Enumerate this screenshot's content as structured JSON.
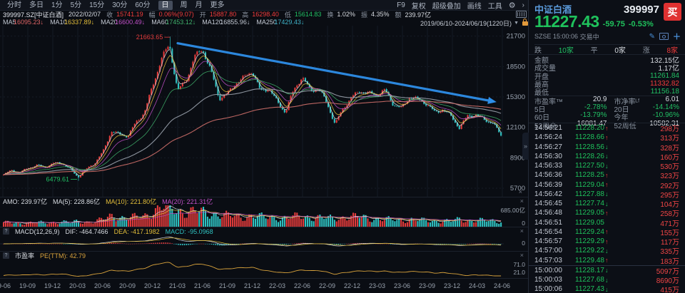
{
  "ui": {
    "gear": "⚙",
    "chevron": "›",
    "caret_down": "▼",
    "close": "×",
    "pencil": "✎",
    "plus": "＋",
    "up_arrow": "↑",
    "down_arrow": "↓",
    "expander": "»"
  },
  "colors": {
    "up": "#e13b3b",
    "down": "#2fc1c1",
    "green": "#21c064",
    "red": "#f23c3c",
    "yellow": "#e2bd3a",
    "magenta": "#c050c8",
    "accent_blue": "#2e8ee8",
    "pe_line": "#d9a33c",
    "name_blue": "#5b9bdc",
    "ma": [
      "#d8d8d8",
      "#e2bd3a",
      "#c050c8",
      "#3faf6a",
      "#9aa2ad",
      "#cf6f6a"
    ]
  },
  "toolbar": {
    "tabs": [
      "分时",
      "多日",
      "1分",
      "5分",
      "15分",
      "30分",
      "60分",
      "日",
      "周",
      "月",
      "更多"
    ],
    "active_tab": "日",
    "right_items": [
      "F9",
      "复权",
      "超级叠加",
      "画线",
      "工具"
    ]
  },
  "info_bar": {
    "symbol": "399997.SZ[中证白酒]",
    "date": "2022/02/07",
    "fields": [
      {
        "label": "收",
        "value": "15741.19",
        "color": "red"
      },
      {
        "label": "幅",
        "value": "0.06%(9.07)",
        "color": "red"
      },
      {
        "label": "开",
        "value": "15887.80",
        "color": "red"
      },
      {
        "label": "高",
        "value": "16298.40",
        "color": "red"
      },
      {
        "label": "低",
        "value": "15614.83",
        "color": "green"
      },
      {
        "label": "换",
        "value": "1.02%",
        "color": "white"
      },
      {
        "label": "振",
        "value": "4.35%",
        "color": "white"
      },
      {
        "label": "额",
        "value": "239.97亿",
        "color": "white"
      }
    ]
  },
  "ma_bar": {
    "items": [
      {
        "label": "MA5",
        "value": "16095.23↓",
        "color": "#e06565"
      },
      {
        "label": "MA10",
        "value": "16337.89↓",
        "color": "#e2bd3a"
      },
      {
        "label": "MA20",
        "value": "16600.49↓",
        "color": "#c050c8"
      },
      {
        "label": "MA60",
        "value": "17453.12↓",
        "color": "#3faf6a"
      },
      {
        "label": "MA120",
        "value": "16855.96↓",
        "color": "#c2c8d2"
      },
      {
        "label": "MA250",
        "value": "17429.43↓",
        "color": "#3fb3c9"
      }
    ],
    "range": "2019/06/10-2024/06/19(1220日)"
  },
  "panes": {
    "volume": {
      "amo": "AMO: 239.97亿",
      "ma5": "MA(5): 228.86亿",
      "ma10": "MA(10): 221.80亿",
      "ma20": "MA(20): 221.31亿",
      "axis_top": "685.00亿",
      "axis_bottom": "0"
    },
    "macd": {
      "help": "?",
      "title": "MACD(12,26,9)",
      "dif": "DIF: -464.7466",
      "dea": "DEA: -417.1982",
      "macd": "MACD: -95.0968",
      "axis_zero": "0"
    },
    "pe": {
      "help": "?",
      "title": "市盈率",
      "value": "PE(TTM): 42.79",
      "axis_top": "71.0",
      "axis_bottom": "21.0"
    }
  },
  "chart_data": {
    "type": "candlestick",
    "title": "中证白酒 399997 日K 2019/06/10-2024/06/19",
    "y_ticks": [
      21700,
      18500,
      15300,
      12100,
      8900,
      5700
    ],
    "x_tick_labels": [
      "19-06",
      "19-09",
      "19-12",
      "20-03",
      "20-06",
      "20-09",
      "20-12",
      "21-03",
      "21-06",
      "21-09",
      "21-12",
      "22-03",
      "22-06",
      "22-09",
      "22-12",
      "23-03",
      "23-06",
      "23-09",
      "23-12",
      "24-03",
      "24-06"
    ],
    "close_monthly": [
      7050,
      7600,
      7400,
      7900,
      8050,
      7850,
      8300,
      8450,
      7750,
      6850,
      7650,
      8350,
      9600,
      11800,
      11300,
      11100,
      12600,
      13800,
      16600,
      19200,
      20600,
      15900,
      17100,
      19600,
      20300,
      17900,
      15100,
      15700,
      16900,
      17300,
      17900,
      15800,
      16300,
      14900,
      13700,
      15900,
      17300,
      16100,
      16300,
      14700,
      12300,
      14100,
      15300,
      16100,
      15700,
      15400,
      15900,
      14600,
      14200,
      15400,
      14900,
      14500,
      13700,
      14100,
      13300,
      11950,
      13250,
      13400,
      13050,
      12600,
      11227.43
    ],
    "volume_monthly_yi": [
      150,
      160,
      140,
      150,
      160,
      150,
      170,
      180,
      160,
      200,
      180,
      190,
      260,
      380,
      330,
      300,
      340,
      380,
      520,
      640,
      685,
      560,
      480,
      520,
      500,
      450,
      420,
      380,
      360,
      350,
      380,
      340,
      330,
      320,
      300,
      340,
      380,
      330,
      320,
      300,
      310,
      330,
      340,
      360,
      300,
      280,
      260,
      250,
      240,
      260,
      240,
      220,
      210,
      220,
      200,
      260,
      230,
      240,
      220,
      210,
      200
    ],
    "pe_monthly": [
      29,
      31,
      30,
      32,
      32,
      31,
      33,
      34,
      31,
      26,
      29,
      33,
      38,
      46,
      44,
      43,
      48,
      52,
      62,
      68,
      71,
      55,
      58,
      64,
      66,
      58,
      49,
      50,
      53,
      54,
      55,
      48,
      43,
      40,
      37,
      42,
      47,
      44,
      45,
      40,
      33,
      38,
      41,
      44,
      43,
      42,
      43,
      40,
      39,
      42,
      41,
      40,
      37,
      38,
      36,
      32,
      29,
      31,
      30,
      29,
      27
    ],
    "last_close": 11227.43,
    "high_label": {
      "text": "21663.65",
      "month_index": 20,
      "value": 21663.65
    },
    "low_label": {
      "text": "6479.61",
      "month_index": 9,
      "value": 6479.61
    },
    "trend_arrow": {
      "from": {
        "month_index": 21.0,
        "value": 20950
      },
      "to": {
        "month_index": 58.8,
        "value": 14850
      }
    }
  },
  "quote_panel": {
    "name": "中证白酒",
    "code": "399997",
    "buy_label": "买",
    "price": "11227.43",
    "change": "-59.75",
    "change_pct": "-0.53%",
    "exchange": "SZSE",
    "time": "15:00:06",
    "status": "交易中",
    "breadth": {
      "down_label": "跌",
      "down": "10家",
      "flat_label": "平",
      "flat": "0家",
      "up_label": "涨",
      "up": "8家"
    },
    "stats_single": [
      {
        "label": "金额",
        "value": "132.15亿",
        "color": "white"
      },
      {
        "label": "成交量",
        "value": "1.17亿",
        "color": "white"
      },
      {
        "label": "开盘",
        "value": "11261.84",
        "color": "green"
      },
      {
        "label": "最高",
        "value": "11332.82",
        "color": "red"
      },
      {
        "label": "最低",
        "value": "11156.18",
        "color": "green"
      }
    ],
    "stats_double": [
      [
        {
          "label": "市盈率™",
          "value": "20.9",
          "color": "white"
        },
        {
          "label": "市净率ᴸᶠ",
          "value": "6.01",
          "color": "white"
        }
      ],
      [
        {
          "label": "5日",
          "value": "-2.78%",
          "color": "green"
        },
        {
          "label": "20日",
          "value": "-14.14%",
          "color": "green"
        }
      ],
      [
        {
          "label": "60日",
          "value": "-13.79%",
          "color": "green"
        },
        {
          "label": "今年",
          "value": "-10.96%",
          "color": "green"
        }
      ],
      [
        {
          "label": "52周高",
          "value": "16081.47",
          "color": "white"
        },
        {
          "label": "52周低",
          "value": "10582.31",
          "color": "white"
        }
      ]
    ],
    "ticks": [
      {
        "time": "14:56:21",
        "price": "11228.20",
        "dir": "up",
        "vol": "298万"
      },
      {
        "time": "14:56:24",
        "price": "11228.66",
        "dir": "up",
        "vol": "313万"
      },
      {
        "time": "14:56:27",
        "price": "11228.56",
        "dir": "down",
        "vol": "328万"
      },
      {
        "time": "14:56:30",
        "price": "11228.26",
        "dir": "down",
        "vol": "160万"
      },
      {
        "time": "14:56:33",
        "price": "11227.50",
        "dir": "down",
        "vol": "530万"
      },
      {
        "time": "14:56:36",
        "price": "11228.25",
        "dir": "up",
        "vol": "323万"
      },
      {
        "time": "14:56:39",
        "price": "11229.04",
        "dir": "up",
        "vol": "292万"
      },
      {
        "time": "14:56:42",
        "price": "11227.88",
        "dir": "down",
        "vol": "295万"
      },
      {
        "time": "14:56:45",
        "price": "11227.74",
        "dir": "down",
        "vol": "104万"
      },
      {
        "time": "14:56:48",
        "price": "11229.05",
        "dir": "up",
        "vol": "258万"
      },
      {
        "time": "14:56:51",
        "price": "11229.05",
        "dir": "flat",
        "vol": "471万"
      },
      {
        "time": "14:56:54",
        "price": "11229.24",
        "dir": "up",
        "vol": "155万"
      },
      {
        "time": "14:56:57",
        "price": "11229.29",
        "dir": "up",
        "vol": "117万"
      },
      {
        "time": "14:57:00",
        "price": "11229.22",
        "dir": "down",
        "vol": "335万"
      },
      {
        "time": "14:57:03",
        "price": "11229.48",
        "dir": "up",
        "vol": "183万"
      },
      {
        "time": "15:00:00",
        "price": "11228.17",
        "dir": "down",
        "vol": "5097万"
      },
      {
        "time": "15:00:03",
        "price": "11227.68",
        "dir": "down",
        "vol": "8690万"
      },
      {
        "time": "15:00:06",
        "price": "11227.43",
        "dir": "down",
        "vol": "415万"
      }
    ]
  }
}
